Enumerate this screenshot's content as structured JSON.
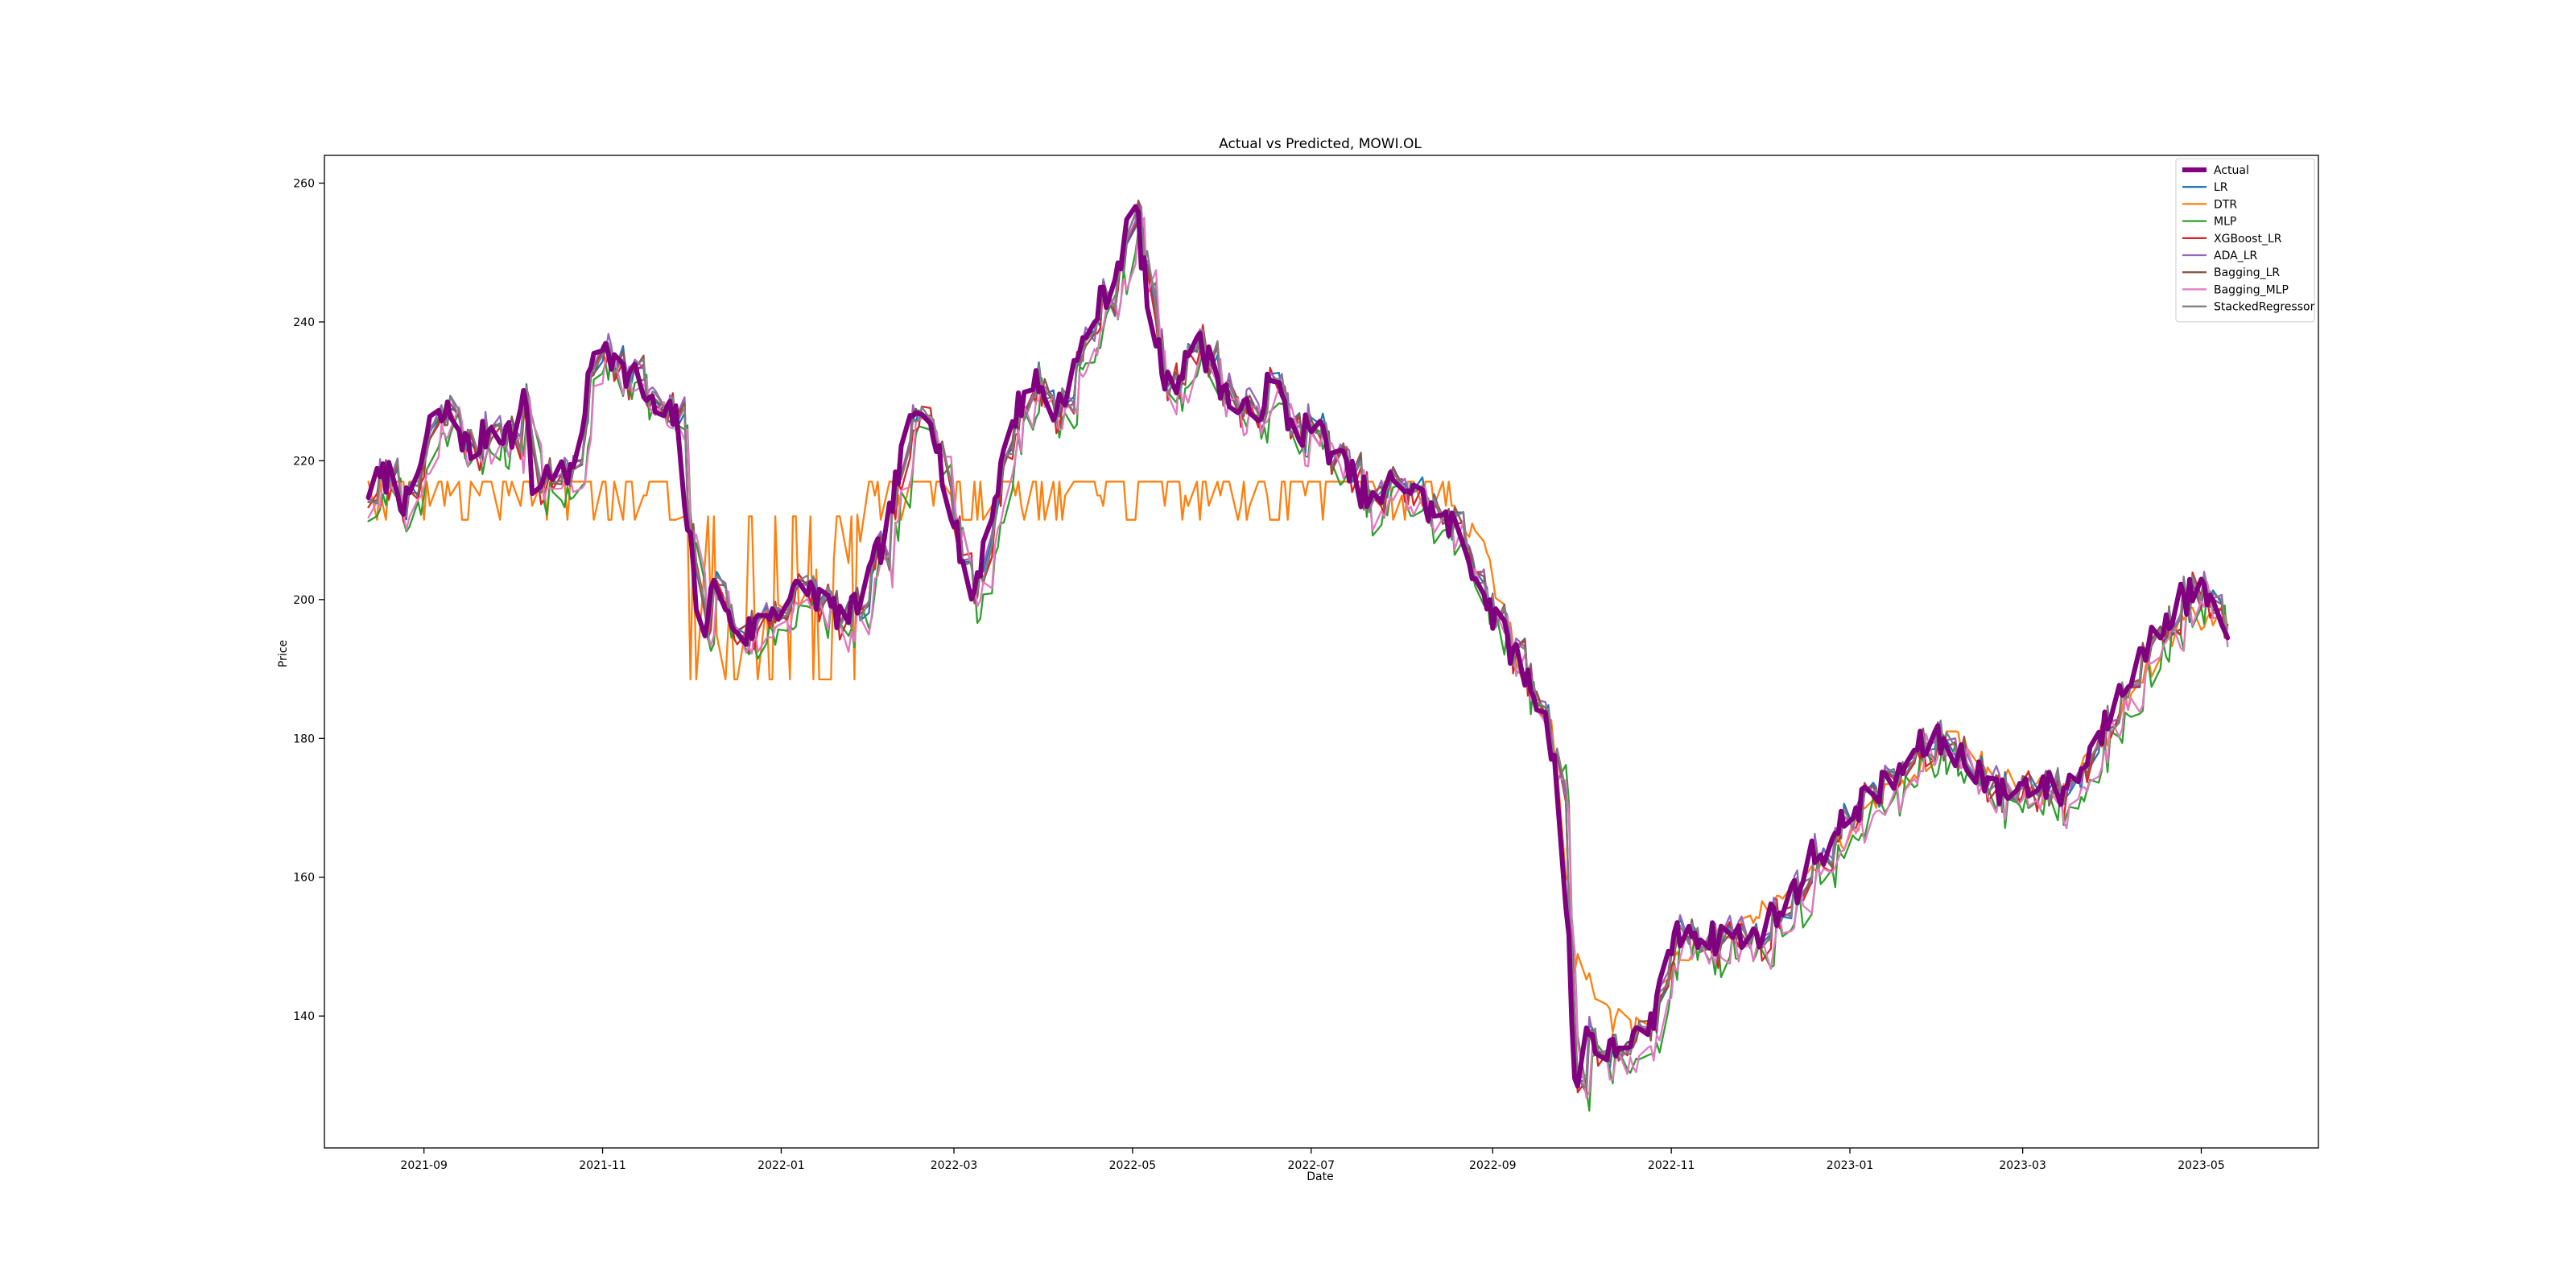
{
  "chart_data": {
    "type": "line",
    "title": "Actual vs Predicted, MOWI.OL",
    "xlabel": "Date",
    "ylabel": "Price",
    "x_ticks": [
      "2021-09",
      "2021-11",
      "2022-01",
      "2022-03",
      "2022-05",
      "2022-07",
      "2022-09",
      "2022-11",
      "2023-01",
      "2023-03",
      "2023-05"
    ],
    "y_ticks": [
      140,
      160,
      180,
      200,
      220,
      240,
      260
    ],
    "xlim": [
      "2021-07-29",
      "2023-06-10"
    ],
    "ylim": [
      121,
      264
    ],
    "legend_position": "top-right",
    "grid": false,
    "actual_anchors": [
      [
        "2021-08-13",
        216
      ],
      [
        "2021-08-20",
        218
      ],
      [
        "2021-08-27",
        213
      ],
      [
        "2021-09-03",
        225
      ],
      [
        "2021-09-10",
        227
      ],
      [
        "2021-09-17",
        221
      ],
      [
        "2021-09-24",
        225
      ],
      [
        "2021-10-01",
        224
      ],
      [
        "2021-10-06",
        229
      ],
      [
        "2021-10-08",
        216
      ],
      [
        "2021-10-15",
        219
      ],
      [
        "2021-10-21",
        217
      ],
      [
        "2021-10-26",
        228
      ],
      [
        "2021-10-30",
        238
      ],
      [
        "2021-11-03",
        237
      ],
      [
        "2021-11-06",
        233
      ],
      [
        "2021-11-12",
        232
      ],
      [
        "2021-11-19",
        227
      ],
      [
        "2021-11-26",
        226
      ],
      [
        "2021-12-03",
        200
      ],
      [
        "2021-12-06",
        197
      ],
      [
        "2021-12-10",
        203
      ],
      [
        "2021-12-14",
        197
      ],
      [
        "2021-12-20",
        195
      ],
      [
        "2021-12-27",
        198
      ],
      [
        "2022-01-03",
        200
      ],
      [
        "2022-01-10",
        202
      ],
      [
        "2022-01-17",
        199
      ],
      [
        "2022-01-24",
        197
      ],
      [
        "2022-01-31",
        203
      ],
      [
        "2022-02-06",
        210
      ],
      [
        "2022-02-13",
        224
      ],
      [
        "2022-02-20",
        230
      ],
      [
        "2022-02-27",
        214
      ],
      [
        "2022-03-07",
        200
      ],
      [
        "2022-03-14",
        213
      ],
      [
        "2022-03-21",
        226
      ],
      [
        "2022-03-28",
        232
      ],
      [
        "2022-04-04",
        227
      ],
      [
        "2022-04-11",
        233
      ],
      [
        "2022-04-18",
        241
      ],
      [
        "2022-04-25",
        247
      ],
      [
        "2022-05-02",
        257
      ],
      [
        "2022-05-07",
        240
      ],
      [
        "2022-05-14",
        229
      ],
      [
        "2022-05-21",
        238
      ],
      [
        "2022-05-28",
        234
      ],
      [
        "2022-06-04",
        228
      ],
      [
        "2022-06-11",
        226
      ],
      [
        "2022-06-18",
        232
      ],
      [
        "2022-06-25",
        224
      ],
      [
        "2022-07-02",
        225
      ],
      [
        "2022-07-09",
        221
      ],
      [
        "2022-07-16",
        217
      ],
      [
        "2022-07-23",
        213
      ],
      [
        "2022-07-30",
        218
      ],
      [
        "2022-08-06",
        215
      ],
      [
        "2022-08-13",
        212
      ],
      [
        "2022-08-20",
        210
      ],
      [
        "2022-08-27",
        203
      ],
      [
        "2022-09-03",
        196
      ],
      [
        "2022-09-10",
        191
      ],
      [
        "2022-09-17",
        185
      ],
      [
        "2022-09-22",
        178
      ],
      [
        "2022-09-27",
        150
      ],
      [
        "2022-09-29",
        130
      ],
      [
        "2022-10-03",
        138
      ],
      [
        "2022-10-10",
        134
      ],
      [
        "2022-10-17",
        137
      ],
      [
        "2022-10-24",
        136
      ],
      [
        "2022-10-31",
        150
      ],
      [
        "2022-11-07",
        153
      ],
      [
        "2022-11-14",
        151
      ],
      [
        "2022-11-21",
        152
      ],
      [
        "2022-11-28",
        151
      ],
      [
        "2022-12-05",
        154
      ],
      [
        "2022-12-12",
        157
      ],
      [
        "2022-12-19",
        163
      ],
      [
        "2022-12-26",
        165
      ],
      [
        "2023-01-02",
        170
      ],
      [
        "2023-01-09",
        172
      ],
      [
        "2023-01-16",
        174
      ],
      [
        "2023-01-23",
        178
      ],
      [
        "2023-01-30",
        180
      ],
      [
        "2023-02-06",
        178
      ],
      [
        "2023-02-13",
        176
      ],
      [
        "2023-02-20",
        172
      ],
      [
        "2023-02-27",
        173
      ],
      [
        "2023-03-06",
        174
      ],
      [
        "2023-03-13",
        172
      ],
      [
        "2023-03-20",
        175
      ],
      [
        "2023-03-27",
        180
      ],
      [
        "2023-04-03",
        188
      ],
      [
        "2023-04-10",
        191
      ],
      [
        "2023-04-17",
        196
      ],
      [
        "2023-04-24",
        200
      ],
      [
        "2023-05-01",
        201
      ],
      [
        "2023-05-06",
        199
      ],
      [
        "2023-05-10",
        192
      ]
    ],
    "dtr_anchors": [
      [
        "2021-08-13",
        217
      ],
      [
        "2021-08-23",
        217
      ],
      [
        "2021-11-22",
        217
      ],
      [
        "2021-12-03",
        205
      ],
      [
        "2021-12-12",
        195
      ],
      [
        "2022-01-20",
        205
      ],
      [
        "2022-02-06",
        214
      ],
      [
        "2022-02-20",
        217
      ],
      [
        "2022-03-07",
        213
      ],
      [
        "2022-03-21",
        216
      ],
      [
        "2022-07-30",
        216
      ],
      [
        "2022-08-10",
        214
      ],
      [
        "2022-08-27",
        210
      ],
      [
        "2022-09-10",
        191
      ],
      [
        "2022-09-22",
        180
      ],
      [
        "2022-09-29",
        148
      ],
      [
        "2022-10-10",
        140
      ],
      [
        "2022-10-24",
        137
      ],
      [
        "2022-10-31",
        147
      ],
      [
        "2022-11-21",
        152
      ],
      [
        "2022-12-19",
        160
      ],
      [
        "2023-01-09",
        171
      ],
      [
        "2023-02-06",
        180
      ],
      [
        "2023-02-20",
        174
      ],
      [
        "2023-03-13",
        172
      ],
      [
        "2023-03-27",
        179
      ],
      [
        "2023-04-10",
        188
      ],
      [
        "2023-04-24",
        197
      ],
      [
        "2023-05-10",
        197
      ]
    ],
    "series": [
      {
        "name": "Actual",
        "color": "#800080"
      },
      {
        "name": "LR",
        "color": "#1f77b4"
      },
      {
        "name": "DTR",
        "color": "#ff7f0e"
      },
      {
        "name": "MLP",
        "color": "#2ca02c"
      },
      {
        "name": "XGBoost_LR",
        "color": "#d62728"
      },
      {
        "name": "ADA_LR",
        "color": "#9467bd"
      },
      {
        "name": "Bagging_LR",
        "color": "#8c564b"
      },
      {
        "name": "Bagging_MLP",
        "color": "#e377c2"
      },
      {
        "name": "StackedRegressor",
        "color": "#7f7f7f"
      }
    ]
  }
}
